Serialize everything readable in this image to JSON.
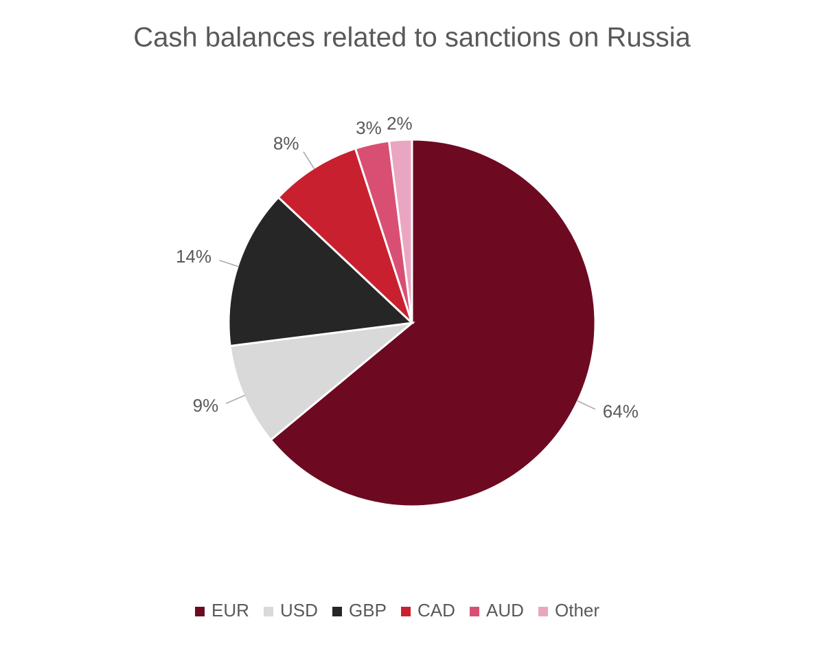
{
  "chart_data": {
    "type": "pie",
    "title": "Cash balances related to sanctions on Russia",
    "categories": [
      "EUR",
      "USD",
      "GBP",
      "CAD",
      "AUD",
      "Other"
    ],
    "values": [
      64,
      9,
      14,
      8,
      3,
      2
    ],
    "value_labels": [
      "64%",
      "9%",
      "14%",
      "8%",
      "3%",
      "2%"
    ],
    "colors": [
      "#6d0a22",
      "#d9d9d9",
      "#262626",
      "#c8202f",
      "#d94f73",
      "#eaa6c0"
    ],
    "legend": "bottom"
  }
}
